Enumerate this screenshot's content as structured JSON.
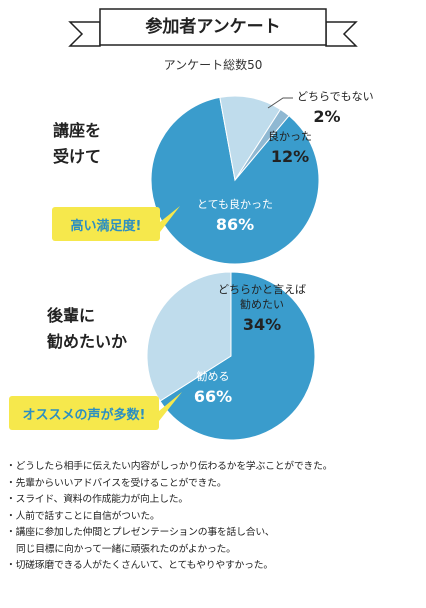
{
  "banner": {
    "title": "参加者アンケート"
  },
  "total_label": "アンケート総数50",
  "questions": [
    {
      "title_line1": "講座を",
      "title_line2": "受けて",
      "callout": "高い満足度!"
    },
    {
      "title_line1": "後輩に",
      "title_line2": "勧めたいか",
      "callout": "オススメの声が多数!"
    }
  ],
  "chart_data": [
    {
      "type": "pie",
      "slices": [
        {
          "label": "とても良かった",
          "value": 86,
          "value_text": "86%",
          "color": "#3a9ccc"
        },
        {
          "label": "良かった",
          "value": 12,
          "value_text": "12%",
          "color": "#bfdcec"
        },
        {
          "label": "どちらでもない",
          "value": 2,
          "value_text": "2%",
          "color": "#8fb8d2"
        }
      ]
    },
    {
      "type": "pie",
      "slices": [
        {
          "label": "勧める",
          "value": 66,
          "value_text": "66%",
          "color": "#3a9ccc"
        },
        {
          "label": "どちらかと言えば\n勧めたい",
          "value": 34,
          "value_text": "34%",
          "color": "#bfdcec"
        }
      ]
    }
  ],
  "comments": [
    "・どうしたら相手に伝えたい内容がしっかり伝わるかを学ぶことができた。",
    "・先輩からいいアドバイスを受けることができた。",
    "・スライド、資料の作成能力が向上した。",
    "・人前で話すことに自信がついた。",
    "・講座に参加した仲間とプレゼンテーションの事を話し合い、\n同じ目標に向かって一緒に頑張れたのがよかった。",
    "・切磋琢磨できる人がたくさんいて、とてもやりやすかった。"
  ],
  "colors": {
    "callout_bg": "#f6e84c",
    "callout_text": "#2b8fc2",
    "pie_dark": "#3a9ccc",
    "pie_light": "#bfdcec"
  }
}
